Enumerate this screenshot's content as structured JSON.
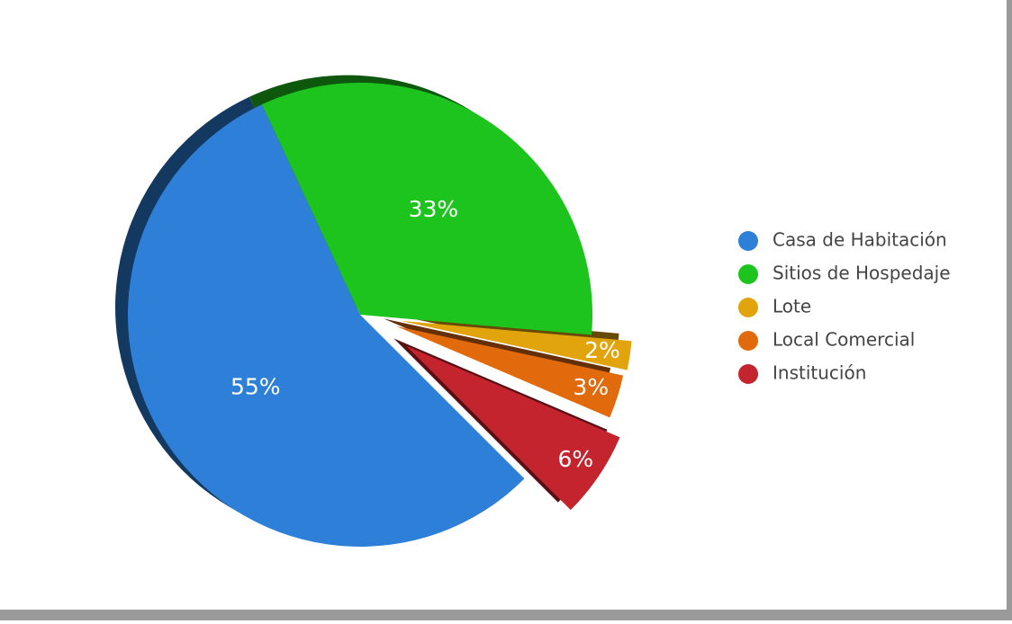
{
  "chart_data": {
    "type": "pie",
    "categories": [
      "Casa de Habitación",
      "Sitios de Hospedaje",
      "Lote",
      "Local Comercial",
      "Institución"
    ],
    "values": [
      55,
      33,
      2,
      3,
      6
    ],
    "value_labels": [
      "55%",
      "33%",
      "2%",
      "3%",
      "6%"
    ],
    "colors": [
      "#2d7fd8",
      "#1ec41e",
      "#e2a40c",
      "#e06a0c",
      "#c4242e"
    ],
    "legend": "right"
  }
}
